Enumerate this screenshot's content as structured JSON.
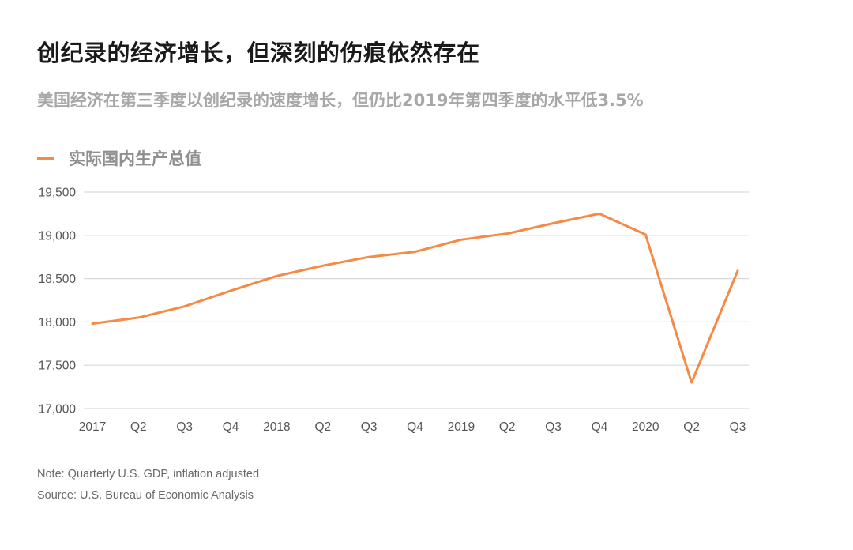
{
  "header": {
    "title": "创纪录的经济增长，但深刻的伤痕依然存在",
    "subtitle": "美国经济在第三季度以创纪录的速度增长，但仍比2019年第四季度的水平低3.5%"
  },
  "legend": {
    "label": "实际国内生产总值"
  },
  "colors": {
    "series": "#f58a45",
    "grid": "#d9d9d9"
  },
  "chart_data": {
    "type": "line",
    "title": "创纪录的经济增长，但深刻的伤痕依然存在",
    "subtitle": "美国经济在第三季度以创纪录的速度增长，但仍比2019年第四季度的水平低3.5%",
    "x": [
      "2017",
      "Q2",
      "Q3",
      "Q4",
      "2018",
      "Q2",
      "Q3",
      "Q4",
      "2019",
      "Q2",
      "Q3",
      "Q4",
      "2020",
      "Q2",
      "Q3"
    ],
    "ylim": [
      17000,
      19500
    ],
    "yticks": [
      17000,
      17500,
      18000,
      18500,
      19000,
      19500
    ],
    "ytick_labels": [
      "17,000",
      "17,500",
      "18,000",
      "18,500",
      "19,000",
      "19,500"
    ],
    "grid": true,
    "legend_position": "top-left",
    "series": [
      {
        "name": "实际国内生产总值",
        "values": [
          17980,
          18050,
          18180,
          18360,
          18530,
          18650,
          18750,
          18810,
          18950,
          19020,
          19140,
          19250,
          19010,
          17300,
          18590
        ]
      }
    ]
  },
  "footer": {
    "note": "Note: Quarterly U.S. GDP, inflation adjusted",
    "source": "Source: U.S. Bureau of Economic Analysis"
  }
}
